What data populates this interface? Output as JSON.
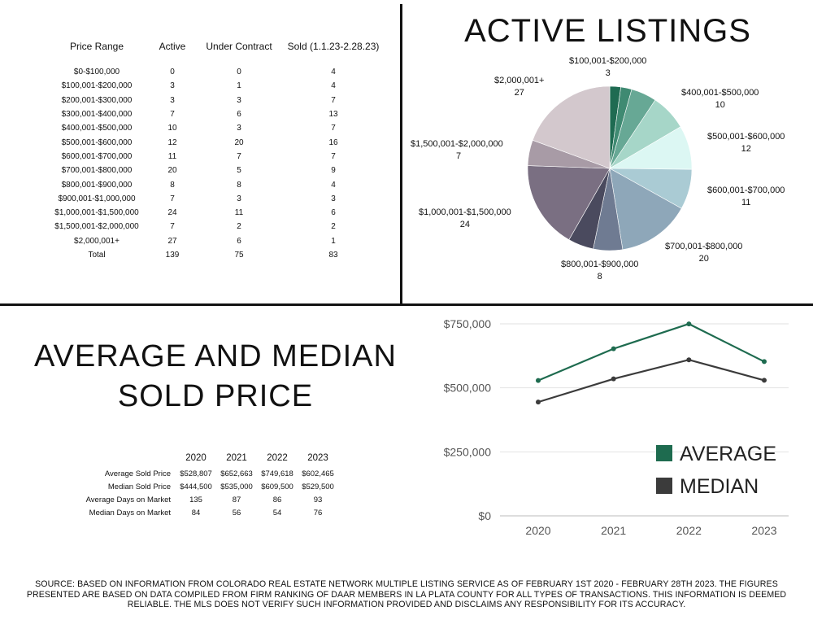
{
  "listings_table": {
    "headers": [
      "Price Range",
      "Active",
      "Under Contract",
      "Sold (1.1.23-2.28.23)"
    ],
    "rows": [
      [
        "$0-$100,000",
        "0",
        "0",
        "4"
      ],
      [
        "$100,001-$200,000",
        "3",
        "1",
        "4"
      ],
      [
        "$200,001-$300,000",
        "3",
        "3",
        "7"
      ],
      [
        "$300,001-$400,000",
        "7",
        "6",
        "13"
      ],
      [
        "$400,001-$500,000",
        "10",
        "3",
        "7"
      ],
      [
        "$500,001-$600,000",
        "12",
        "20",
        "16"
      ],
      [
        "$600,001-$700,000",
        "11",
        "7",
        "7"
      ],
      [
        "$700,001-$800,000",
        "20",
        "5",
        "9"
      ],
      [
        "$800,001-$900,000",
        "8",
        "8",
        "4"
      ],
      [
        "$900,001-$1,000,000",
        "7",
        "3",
        "3"
      ],
      [
        "$1,000,001-$1,500,000",
        "24",
        "11",
        "6"
      ],
      [
        "$1,500,001-$2,000,000",
        "7",
        "2",
        "2"
      ],
      [
        "$2,000,001+",
        "27",
        "6",
        "1"
      ],
      [
        "Total",
        "139",
        "75",
        "83"
      ]
    ]
  },
  "pie_title": "ACTIVE LISTINGS",
  "avg_title_line1": "AVERAGE AND MEDIAN",
  "avg_title_line2": "SOLD PRICE",
  "sold_table": {
    "headers": [
      "",
      "2020",
      "2021",
      "2022",
      "2023"
    ],
    "rows": [
      [
        "Average Sold Price",
        "$528,807",
        "$652,663",
        "$749,618",
        "$602,465"
      ],
      [
        "Median Sold Price",
        "$444,500",
        "$535,000",
        "$609,500",
        "$529,500"
      ],
      [
        "Average Days on Market",
        "135",
        "87",
        "86",
        "93"
      ],
      [
        "Median Days on Market",
        "84",
        "56",
        "54",
        "76"
      ]
    ]
  },
  "source": "SOURCE: BASED ON INFORMATION FROM COLORADO REAL ESTATE NETWORK MULTIPLE LISTING SERVICE AS OF FEBRUARY 1ST 2020 - FEBRUARY 28TH 2023. THE FIGURES PRESENTED ARE BASED ON DATA COMPILED FROM FIRM RANKING OF DAAR MEMBERS IN LA PLATA COUNTY FOR ALL TYPES OF TRANSACTIONS. THIS INFORMATION IS DEEMED RELIABLE. THE MLS DOES NOT VERIFY SUCH INFORMATION PROVIDED AND DISCLAIMS ANY RESPONSIBILITY FOR ITS ACCURACY.",
  "chart_data": [
    {
      "type": "pie",
      "title": "ACTIVE LISTINGS",
      "slices": [
        {
          "label": "$100,001-$200,000",
          "value": 3,
          "color": "#1f6b52"
        },
        {
          "label": "$200,001-$300,000",
          "value": 3,
          "color": "#3f8a72"
        },
        {
          "label": "$300,001-$400,000",
          "value": 7,
          "color": "#67a895"
        },
        {
          "label": "$400,001-$500,000",
          "value": 10,
          "color": "#a6d6c8"
        },
        {
          "label": "$500,001-$600,000",
          "value": 12,
          "color": "#dcf7f3"
        },
        {
          "label": "$600,001-$700,000",
          "value": 11,
          "color": "#aacbd4"
        },
        {
          "label": "$700,001-$800,000",
          "value": 20,
          "color": "#8ea7b9"
        },
        {
          "label": "$800,001-$900,000",
          "value": 8,
          "color": "#6f7b92"
        },
        {
          "label": "$900,001-$1,000,000",
          "value": 7,
          "color": "#4a4a5e"
        },
        {
          "label": "$1,000,001-$1,500,000",
          "value": 24,
          "color": "#7a6f82"
        },
        {
          "label": "$1,500,001-$2,000,000",
          "value": 7,
          "color": "#a89ba6"
        },
        {
          "label": "$2,000,001+",
          "value": 27,
          "color": "#d3c8cd"
        }
      ],
      "labels": [
        {
          "name": "$100,001-$200,000",
          "value": "3"
        },
        {
          "name": "$400,001-$500,000",
          "value": "10"
        },
        {
          "name": "$500,001-$600,000",
          "value": "12"
        },
        {
          "name": "$600,001-$700,000",
          "value": "11"
        },
        {
          "name": "$700,001-$800,000",
          "value": "20"
        },
        {
          "name": "$800,001-$900,000",
          "value": "8"
        },
        {
          "name": "$1,000,001-$1,500,000",
          "value": "24"
        },
        {
          "name": "$1,500,001-$2,000,000",
          "value": "7"
        },
        {
          "name": "$2,000,001+",
          "value": "27"
        }
      ]
    },
    {
      "type": "line",
      "categories": [
        "2020",
        "2021",
        "2022",
        "2023"
      ],
      "series": [
        {
          "name": "AVERAGE",
          "values": [
            528807,
            652663,
            749618,
            602465
          ],
          "color": "#1e6b4f"
        },
        {
          "name": "MEDIAN",
          "values": [
            444500,
            535000,
            609500,
            529500
          ],
          "color": "#3b3b3b"
        }
      ],
      "yticks": [
        "$0",
        "$250,000",
        "$500,000",
        "$750,000"
      ],
      "ytick_values": [
        0,
        250000,
        500000,
        750000
      ],
      "ylim": [
        0,
        750000
      ],
      "grid": true,
      "legend_position": "bottom-right"
    }
  ]
}
